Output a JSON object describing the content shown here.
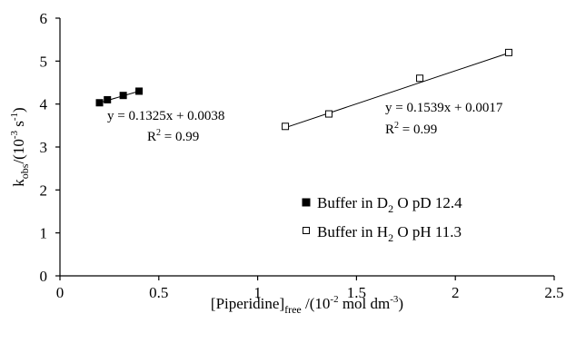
{
  "chart_data": {
    "type": "scatter",
    "xlabel": "[Piperidine]free /(10-2 mol dm-3)",
    "ylabel": "kobs/(10-3 s-1)",
    "xlim": [
      0,
      2.5
    ],
    "ylim": [
      0,
      6
    ],
    "xticks": [
      "0",
      "0.5",
      "1",
      "1.5",
      "2",
      "2.5"
    ],
    "yticks": [
      "0",
      "1",
      "2",
      "3",
      "4",
      "5",
      "6"
    ],
    "grid": false,
    "legend_position": "center-right",
    "series": [
      {
        "name": "Buffer in D2 O pD 12.4",
        "marker": "filled-square",
        "color": "#000000",
        "x": [
          0.2,
          0.24,
          0.32,
          0.4
        ],
        "y": [
          4.03,
          4.1,
          4.2,
          4.3
        ],
        "fit": {
          "x": [
            0.2,
            0.4
          ],
          "y": [
            4.03,
            4.3
          ]
        },
        "equation": "y = 0.1325x + 0.0038",
        "r2": "R2 = 0.99"
      },
      {
        "name": "Buffer in H2 O pH 11.3",
        "marker": "open-square",
        "color": "#000000",
        "x": [
          1.14,
          1.36,
          1.82,
          2.27
        ],
        "y": [
          3.48,
          3.77,
          4.6,
          5.2
        ],
        "fit": {
          "x": [
            1.14,
            2.27
          ],
          "y": [
            3.45,
            5.19
          ]
        },
        "equation": "y = 0.1539x + 0.0017",
        "r2": "R2 = 0.99"
      }
    ]
  }
}
